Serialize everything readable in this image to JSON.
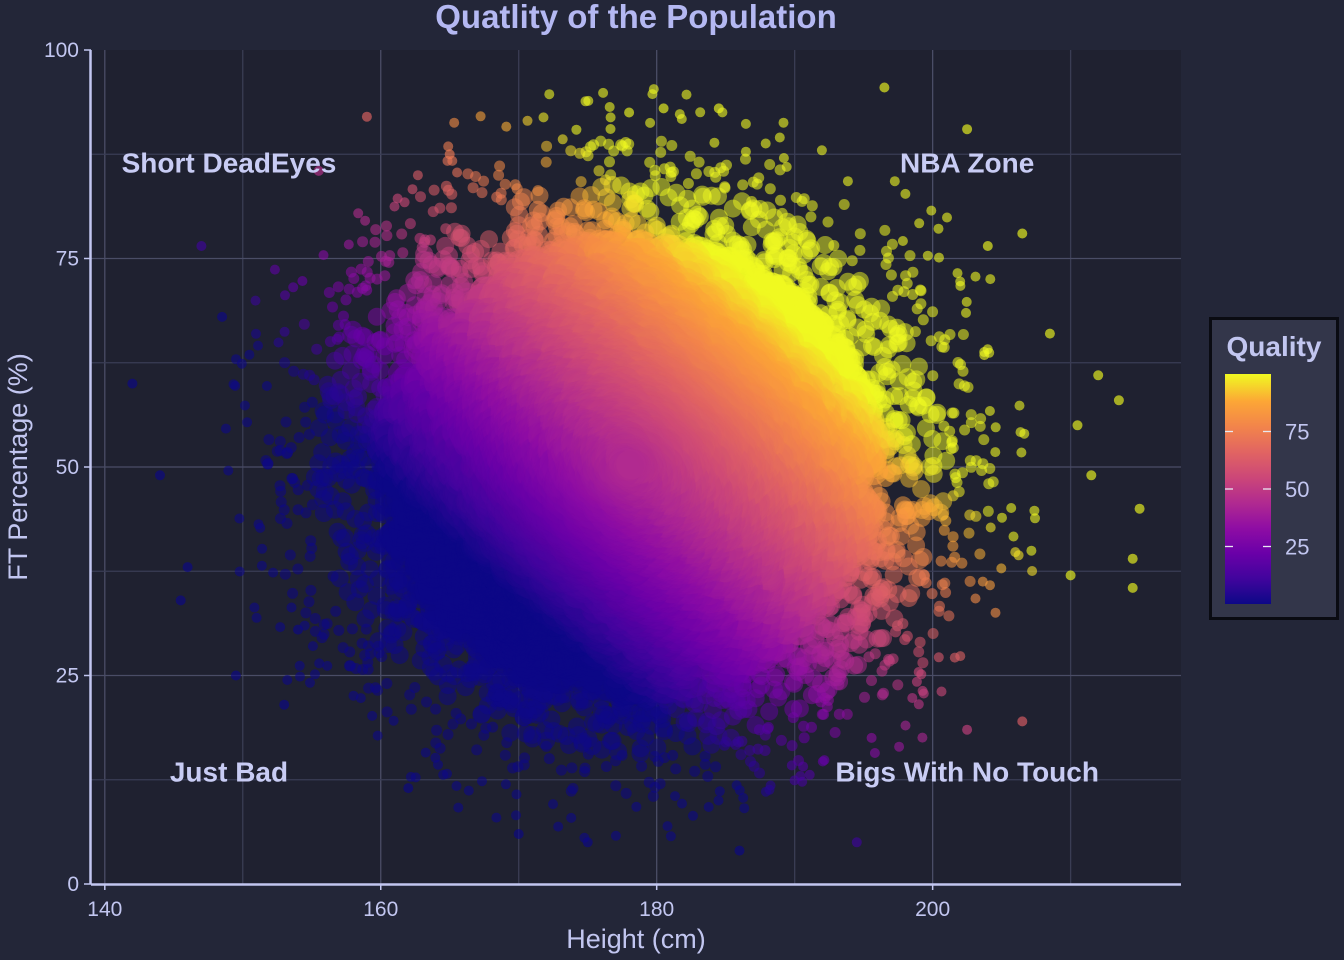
{
  "chart_data": {
    "type": "scatter",
    "title": "Quatlity of the Population",
    "xlabel": "Height (cm)",
    "ylabel": "FT Percentage (%)",
    "xlim": [
      139,
      218
    ],
    "ylim": [
      0,
      100
    ],
    "x_ticks": [
      140,
      160,
      180,
      200
    ],
    "y_ticks": [
      0,
      25,
      50,
      75,
      100
    ],
    "grid": true,
    "annotations": [
      {
        "text": "Short DeadEyes",
        "x": 149,
        "y": 86.5
      },
      {
        "text": "NBA Zone",
        "x": 202.5,
        "y": 86.5
      },
      {
        "text": "Just Bad",
        "x": 149,
        "y": 13.5
      },
      {
        "text": "Bigs With No Touch",
        "x": 202.5,
        "y": 13.5
      }
    ],
    "colorbar": {
      "title": "Quality",
      "ticks": [
        25,
        50,
        75
      ],
      "range": [
        0,
        100
      ],
      "colorscale": "plasma",
      "placement": "right"
    },
    "point_cloud": {
      "x_mean": 178,
      "x_sd": 10,
      "y_mean": 50,
      "y_sd": 15,
      "approx_count": 200000
    },
    "outlier_points": [
      {
        "x": 196.5,
        "y": 95.5
      },
      {
        "x": 202.5,
        "y": 90.5
      },
      {
        "x": 159,
        "y": 92
      },
      {
        "x": 184.5,
        "y": 93
      },
      {
        "x": 180.5,
        "y": 93
      },
      {
        "x": 178,
        "y": 92.5
      },
      {
        "x": 206.5,
        "y": 78
      },
      {
        "x": 147,
        "y": 76.5
      },
      {
        "x": 142,
        "y": 60
      },
      {
        "x": 212,
        "y": 61
      },
      {
        "x": 213.5,
        "y": 58
      },
      {
        "x": 215,
        "y": 45
      },
      {
        "x": 214.5,
        "y": 39
      },
      {
        "x": 214.5,
        "y": 35.5
      },
      {
        "x": 210,
        "y": 37
      },
      {
        "x": 186,
        "y": 4
      },
      {
        "x": 175,
        "y": 5
      },
      {
        "x": 194.5,
        "y": 5
      },
      {
        "x": 149.5,
        "y": 25
      },
      {
        "x": 146,
        "y": 38
      },
      {
        "x": 145.5,
        "y": 34
      },
      {
        "x": 144,
        "y": 49
      },
      {
        "x": 148.5,
        "y": 68
      },
      {
        "x": 202.5,
        "y": 18.5
      },
      {
        "x": 206.5,
        "y": 19.5
      },
      {
        "x": 153,
        "y": 21.5
      },
      {
        "x": 162,
        "y": 11.5
      },
      {
        "x": 170,
        "y": 6
      },
      {
        "x": 211.5,
        "y": 49
      },
      {
        "x": 210.5,
        "y": 55
      },
      {
        "x": 208.5,
        "y": 66
      },
      {
        "x": 204,
        "y": 76.5
      },
      {
        "x": 155.5,
        "y": 85.5
      },
      {
        "x": 165,
        "y": 87.5
      },
      {
        "x": 154,
        "y": 30.5
      }
    ]
  }
}
